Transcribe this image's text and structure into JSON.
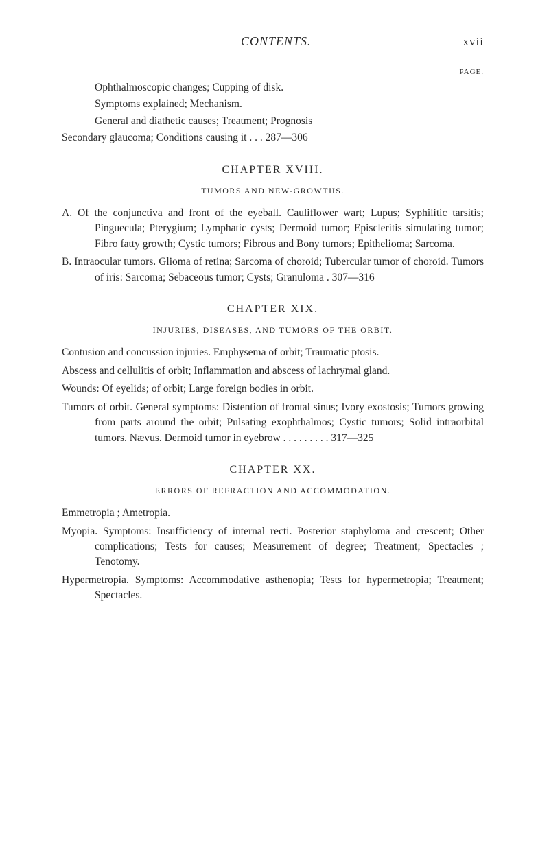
{
  "header": {
    "title": "CONTENTS.",
    "pageNumeral": "xvii",
    "pageLabel": "PAGE."
  },
  "intro": {
    "line1": "Ophthalmoscopic changes; Cupping of disk.",
    "line2": "Symptoms explained; Mechanism.",
    "line3": "General and diathetic causes; Treatment; Prognosis",
    "line4": "Secondary glaucoma; Conditions causing it   .       .       .   287—306"
  },
  "chapter18": {
    "heading": "CHAPTER XVIII.",
    "sub": "TUMORS AND NEW-GROWTHS.",
    "a": "A. Of the conjunctiva and front of the eyeball. Cauliflower wart; Lupus; Syphilitic tarsitis; Pinguecula; Pterygium; Lymphatic cysts; Dermoid tumor; Episcleritis simulating tumor; Fibro fatty growth; Cystic tumors; Fibrous and Bony tumors; Epithelioma; Sarcoma.",
    "b": "B. Intraocular tumors. Glioma of retina; Sarcoma of choroid; Tubercular tumor of choroid. Tumors of iris: Sarcoma; Sebaceous tumor; Cysts; Granuloma     .   307—316"
  },
  "chapter19": {
    "heading": "CHAPTER XIX.",
    "sub": "INJURIES, DISEASES, AND TUMORS OF THE ORBIT.",
    "p1": "Contusion and concussion injuries. Emphysema of orbit; Traumatic ptosis.",
    "p2": "Abscess and cellulitis of orbit; Inflammation and abscess of lachrymal gland.",
    "p3": "Wounds: Of eyelids; of orbit; Large foreign bodies in orbit.",
    "p4": "Tumors of orbit. General symptoms: Distention of frontal sinus; Ivory exostosis; Tumors growing from parts around the orbit; Pulsating exophthalmos; Cystic tumors; Solid intraorbital tumors. Nævus. Dermoid tumor in eyebrow     .       .       .       .       .       .       .       .       .   317—325"
  },
  "chapter20": {
    "heading": "CHAPTER XX.",
    "sub": "ERRORS OF REFRACTION AND ACCOMMODATION.",
    "p1": "Emmetropia ; Ametropia.",
    "p2": "Myopia. Symptoms: Insufficiency of internal recti. Posterior staphyloma and crescent; Other complications; Tests for causes; Measurement of degree; Treatment; Spectacles ; Tenotomy.",
    "p3": "Hypermetropia. Symptoms: Accommodative asthenopia; Tests for hypermetropia; Treatment; Spectacles."
  }
}
